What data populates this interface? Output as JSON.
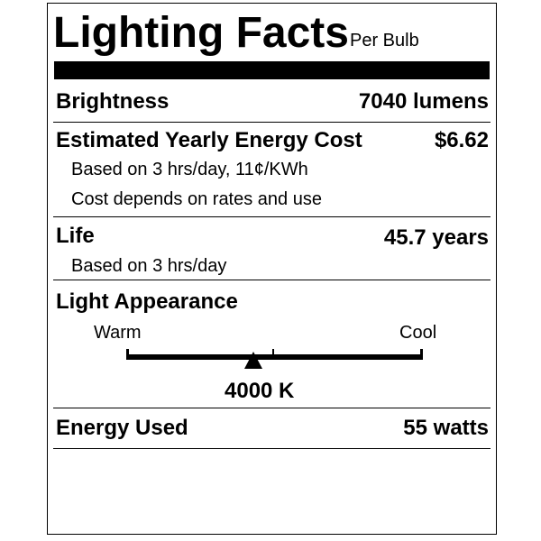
{
  "title": "Lighting Facts",
  "subtitle": "Per Bulb",
  "brightness": {
    "label": "Brightness",
    "value": "7040 lumens"
  },
  "energy_cost": {
    "label": "Estimated Yearly Energy Cost",
    "value": "$6.62",
    "notes": [
      "Based on 3 hrs/day, 11¢/KWh",
      "Cost depends on rates and use"
    ]
  },
  "life": {
    "label": "Life",
    "value": "45.7 years",
    "note": "Based on 3 hrs/day"
  },
  "light_appearance": {
    "label": "Light Appearance",
    "warm_label": "Warm",
    "cool_label": "Cool",
    "value": "4000 K",
    "marker_position": 0.43
  },
  "energy_used": {
    "label": "Energy Used",
    "value": "55 watts"
  }
}
